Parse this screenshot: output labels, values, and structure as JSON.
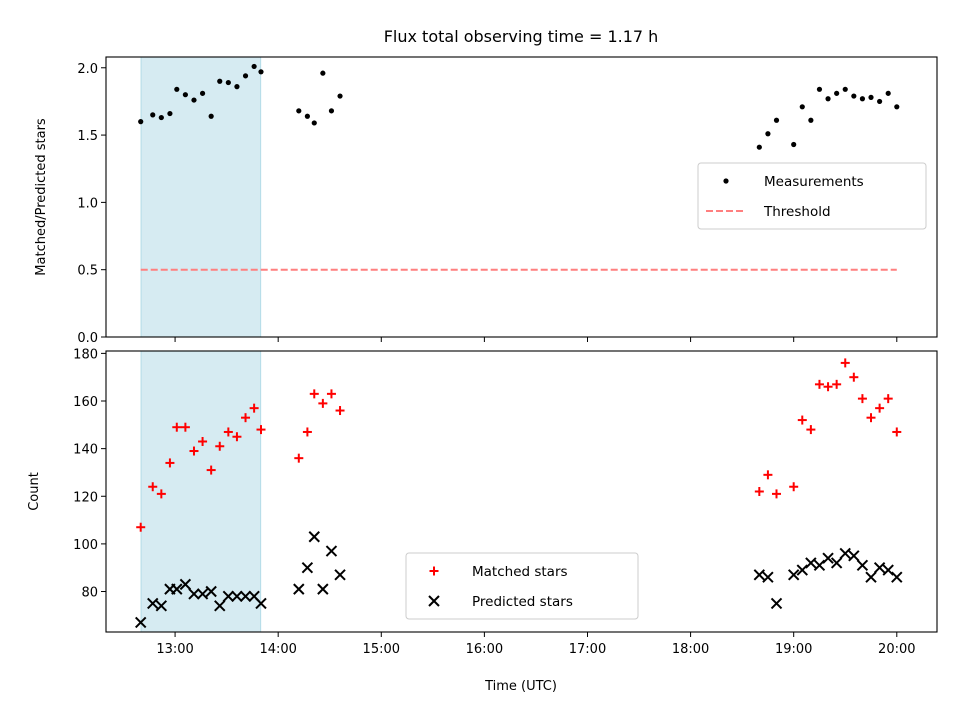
{
  "chart_data": {
    "title": "Flux total observing time = 1.17 h",
    "xlabel": "Time (UTC)",
    "x_tick_labels": [
      "13:00",
      "14:00",
      "15:00",
      "16:00",
      "17:00",
      "18:00",
      "19:00",
      "20:00"
    ],
    "xlim_hours": [
      12.33,
      20.39
    ],
    "highlight_span_hours": [
      12.67,
      13.83
    ],
    "highlight_color": "#add8e6",
    "panels": [
      {
        "type": "scatter",
        "ylabel": "Matched/Predicted stars",
        "ylim": [
          0.0,
          2.08
        ],
        "y_ticks": [
          0.0,
          0.5,
          1.0,
          1.5,
          2.0
        ],
        "y_tick_labels": [
          "0.0",
          "0.5",
          "1.0",
          "1.5",
          "2.0"
        ],
        "legend": {
          "position": "center-right",
          "entries": [
            "Measurements",
            "Threshold"
          ]
        },
        "series": [
          {
            "name": "Measurements",
            "marker": "dot",
            "color": "#000000",
            "x": [
              "12:40",
              "12:47",
              "12:52",
              "12:57",
              "13:01",
              "13:06",
              "13:11",
              "13:16",
              "13:21",
              "13:26",
              "13:31",
              "13:36",
              "13:41",
              "13:46",
              "13:50",
              "14:12",
              "14:17",
              "14:21",
              "14:26",
              "14:31",
              "14:36",
              "18:40",
              "18:45",
              "18:50",
              "19:00",
              "19:05",
              "19:10",
              "19:15",
              "19:20",
              "19:25",
              "19:30",
              "19:35",
              "19:40",
              "19:45",
              "19:50",
              "19:55",
              "20:00"
            ],
            "y": [
              1.6,
              1.65,
              1.63,
              1.66,
              1.84,
              1.8,
              1.76,
              1.81,
              1.64,
              1.9,
              1.89,
              1.86,
              1.94,
              2.01,
              1.97,
              1.68,
              1.64,
              1.59,
              1.96,
              1.68,
              1.79,
              1.41,
              1.51,
              1.61,
              1.43,
              1.71,
              1.61,
              1.84,
              1.77,
              1.81,
              1.84,
              1.79,
              1.77,
              1.78,
              1.75,
              1.81,
              1.71
            ]
          },
          {
            "name": "Threshold",
            "type": "line",
            "style": "dashed",
            "color": "#ff7f7f",
            "x": [
              "12:40",
              "20:00"
            ],
            "y": [
              0.5,
              0.5
            ]
          }
        ]
      },
      {
        "type": "scatter",
        "ylabel": "Count",
        "ylim": [
          63,
          181
        ],
        "y_ticks": [
          80,
          100,
          120,
          140,
          160,
          180
        ],
        "y_tick_labels": [
          "80",
          "100",
          "120",
          "140",
          "160",
          "180"
        ],
        "legend": {
          "position": "lower-center",
          "entries": [
            "Matched stars",
            "Predicted stars"
          ]
        },
        "series": [
          {
            "name": "Matched stars",
            "marker": "plus",
            "color": "#ff0000",
            "x": [
              "12:40",
              "12:47",
              "12:52",
              "12:57",
              "13:01",
              "13:06",
              "13:11",
              "13:16",
              "13:21",
              "13:26",
              "13:31",
              "13:36",
              "13:41",
              "13:46",
              "13:50",
              "14:12",
              "14:17",
              "14:21",
              "14:26",
              "14:31",
              "14:36",
              "18:40",
              "18:45",
              "18:50",
              "19:00",
              "19:05",
              "19:10",
              "19:15",
              "19:20",
              "19:25",
              "19:30",
              "19:35",
              "19:40",
              "19:45",
              "19:50",
              "19:55",
              "20:00"
            ],
            "y": [
              107,
              124,
              121,
              134,
              149,
              149,
              139,
              143,
              131,
              141,
              147,
              145,
              153,
              157,
              148,
              136,
              147,
              163,
              159,
              163,
              156,
              122,
              129,
              121,
              124,
              152,
              148,
              167,
              166,
              167,
              176,
              170,
              161,
              153,
              157,
              161,
              147
            ]
          },
          {
            "name": "Predicted stars",
            "marker": "x",
            "color": "#000000",
            "x": [
              "12:40",
              "12:47",
              "12:52",
              "12:57",
              "13:01",
              "13:06",
              "13:11",
              "13:16",
              "13:21",
              "13:26",
              "13:31",
              "13:36",
              "13:41",
              "13:46",
              "13:50",
              "14:12",
              "14:17",
              "14:21",
              "14:26",
              "14:31",
              "14:36",
              "18:40",
              "18:45",
              "18:50",
              "19:00",
              "19:05",
              "19:10",
              "19:15",
              "19:20",
              "19:25",
              "19:30",
              "19:35",
              "19:40",
              "19:45",
              "19:50",
              "19:55",
              "20:00"
            ],
            "y": [
              67,
              75,
              74,
              81,
              81,
              83,
              79,
              79,
              80,
              74,
              78,
              78,
              78,
              78,
              75,
              81,
              90,
              103,
              81,
              97,
              87,
              87,
              86,
              75,
              87,
              89,
              92,
              91,
              94,
              92,
              96,
              95,
              91,
              86,
              90,
              89,
              86
            ]
          }
        ]
      }
    ]
  }
}
